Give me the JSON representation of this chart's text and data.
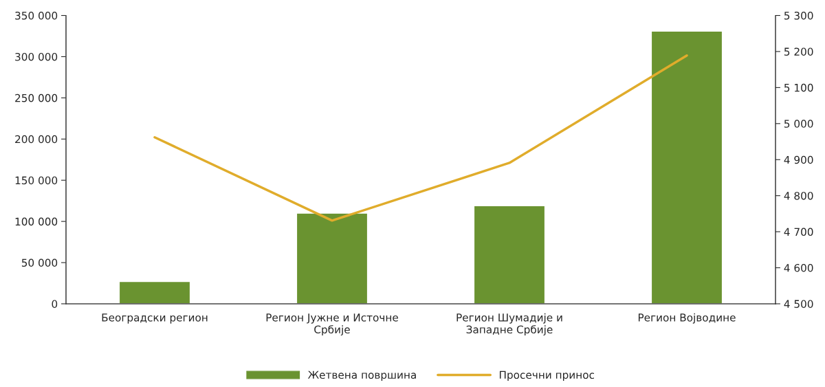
{
  "chart_data": {
    "type": "bar",
    "categories": [
      "Београдски регион",
      "Регион Јужне и Источне\nСрбије",
      "Регион Шумадије и\nЗападне Србије",
      "Регион Војводине"
    ],
    "series": [
      {
        "name": "Жетвена површина",
        "color": "#6a9330",
        "values": [
          27000,
          110000,
          119000,
          331000
        ]
      },
      {
        "name": "Просечни принос",
        "type": "line",
        "axis": "y2",
        "color": "#e0ac2b",
        "values": [
          4962,
          4731,
          4891,
          5189
        ]
      }
    ],
    "ylim": [
      0,
      350000
    ],
    "yticks": [
      {
        "value": 0,
        "label": "0"
      },
      {
        "value": 50000,
        "label": "50 000"
      },
      {
        "value": 100000,
        "label": "100 000"
      },
      {
        "value": 150000,
        "label": "150 000"
      },
      {
        "value": 200000,
        "label": "200 000"
      },
      {
        "value": 250000,
        "label": "250 000"
      },
      {
        "value": 300000,
        "label": "300 000"
      },
      {
        "value": 350000,
        "label": "350 000"
      }
    ],
    "y2lim": [
      4500,
      5300
    ],
    "y2ticks": [
      {
        "value": 4500,
        "label": "4 500"
      },
      {
        "value": 4600,
        "label": "4 600"
      },
      {
        "value": 4700,
        "label": "4 700"
      },
      {
        "value": 4800,
        "label": "4 800"
      },
      {
        "value": 4900,
        "label": "4 900"
      },
      {
        "value": 5000,
        "label": "5 000"
      },
      {
        "value": 5100,
        "label": "5 100"
      },
      {
        "value": 5200,
        "label": "5 200"
      },
      {
        "value": 5300,
        "label": "5 300"
      }
    ],
    "grid": false,
    "legend": "bottom",
    "marker": "none",
    "line_style": "solid"
  }
}
